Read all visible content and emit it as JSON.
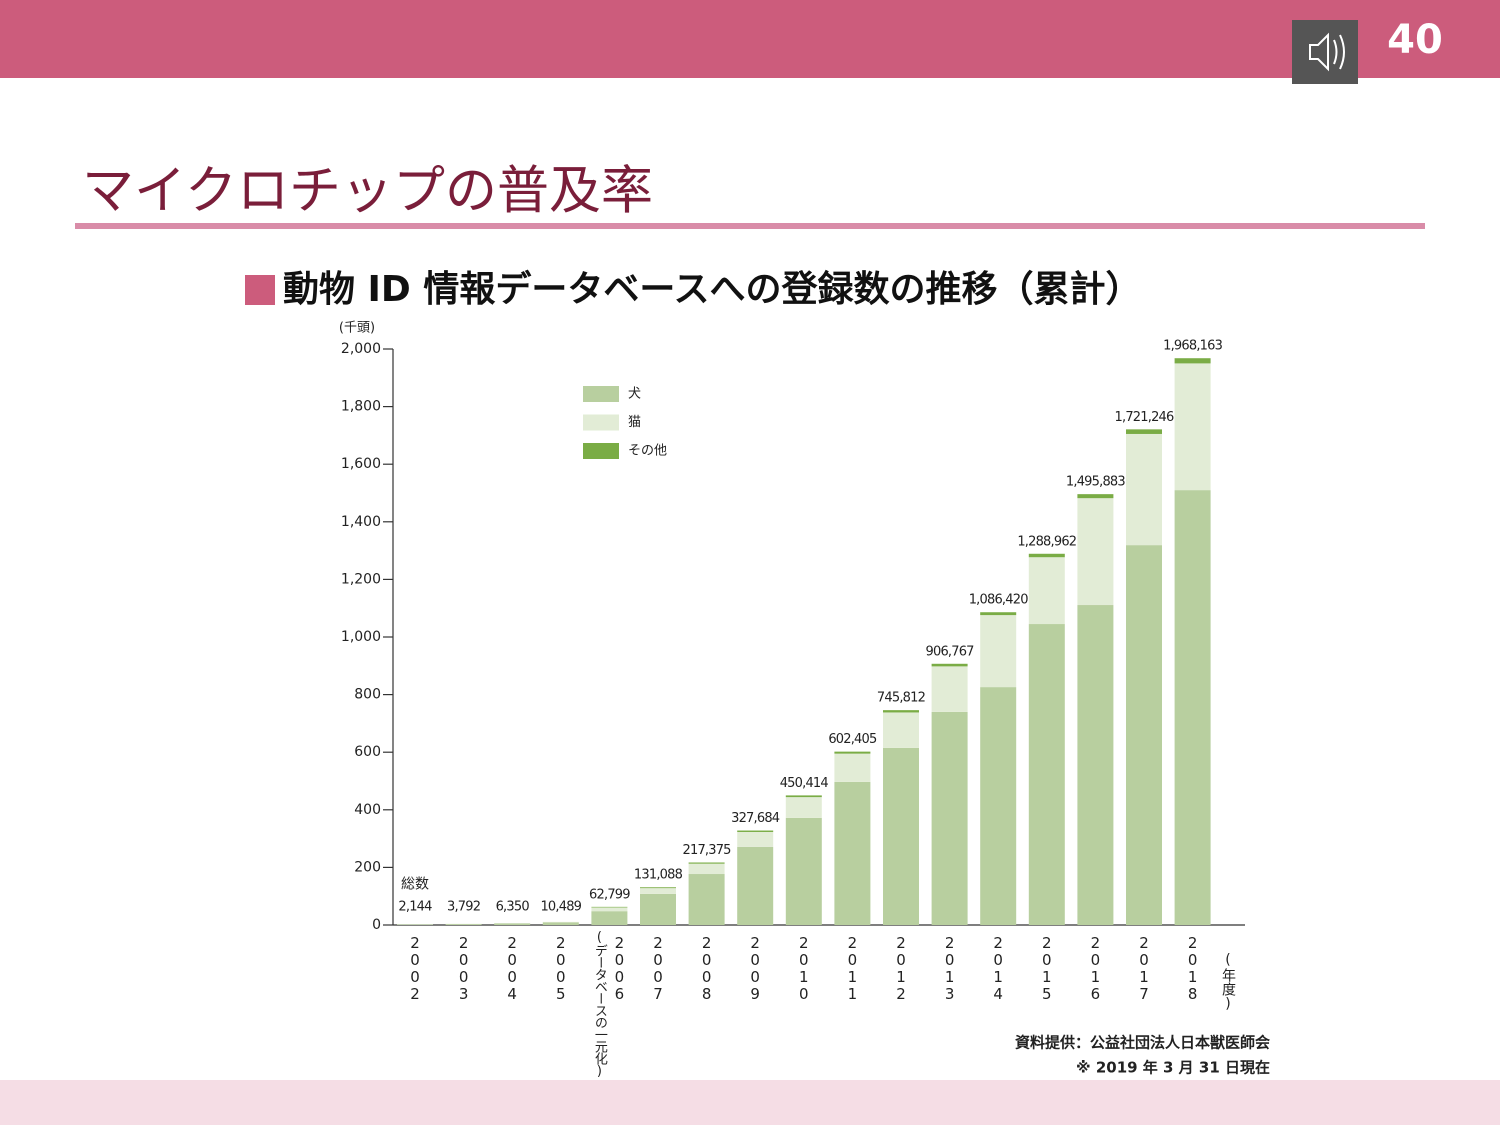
{
  "header": {
    "page_number": "40"
  },
  "title": "マイクロチップの普及率",
  "subtitle": "動物 ID  情報データベースへの登録数の推移（累計）",
  "chart_data": {
    "type": "bar",
    "stacked": true,
    "y_label": "(千頭)",
    "x_label": "(年度)",
    "categories": [
      "2002",
      "2003",
      "2004",
      "2005",
      "2006",
      "2007",
      "2008",
      "2009",
      "2010",
      "2011",
      "2012",
      "2013",
      "2014",
      "2015",
      "2016",
      "2017",
      "2018"
    ],
    "category_annotation": {
      "index": 4,
      "text": "(データベースの一元化)"
    },
    "series": [
      {
        "name": "犬",
        "color": "#b8cf9f",
        "values": [
          1.8,
          3.2,
          5.3,
          8.8,
          48,
          108,
          177,
          271,
          372,
          497,
          615,
          740,
          826,
          1045,
          1111,
          1319,
          1510
        ]
      },
      {
        "name": "猫",
        "color": "#e2ecd6",
        "values": [
          0.3,
          0.5,
          1,
          1.6,
          13,
          20,
          36,
          52,
          72,
          98,
          123,
          158,
          250,
          232,
          371,
          386,
          440
        ]
      },
      {
        "name": "その他",
        "color": "#7aac45",
        "values": [
          0.04,
          0.1,
          0.1,
          0.1,
          2,
          3,
          4,
          5,
          6,
          7,
          8,
          9,
          10,
          12,
          14,
          16,
          18
        ]
      }
    ],
    "totals": {
      "name": "総数",
      "values": [
        2.144,
        3.792,
        6.35,
        10.489,
        62.799,
        131.088,
        217.375,
        327.684,
        450.414,
        602.405,
        745.812,
        906.767,
        1086.42,
        1288.962,
        1495.883,
        1721.246,
        1968.163
      ],
      "value_labels": [
        "2,144",
        "3,792",
        "6,350",
        "10,489",
        "62,799",
        "131,088",
        "217,375",
        "327,684",
        "450,414",
        "602,405",
        "745,812",
        "906,767",
        "1,086,420",
        "1,288,962",
        "1,495,883",
        "1,721,246",
        "1,968,163"
      ]
    },
    "ylim": [
      0,
      2000
    ],
    "yticks": [
      0,
      200,
      400,
      600,
      800,
      {
        "value": 1000,
        "label": "1,000"
      },
      {
        "value": 1200,
        "label": "1,200"
      },
      {
        "value": 1400,
        "label": "1,400"
      },
      {
        "value": 1600,
        "label": "1,600"
      },
      {
        "value": 1800,
        "label": "1,800"
      },
      {
        "value": 2000,
        "label": "2,000"
      }
    ],
    "legend": "upper left"
  },
  "source": [
    "資料提供：公益社団法人日本獣医師会",
    "※ 2019 年 3 月 31 日現在"
  ]
}
